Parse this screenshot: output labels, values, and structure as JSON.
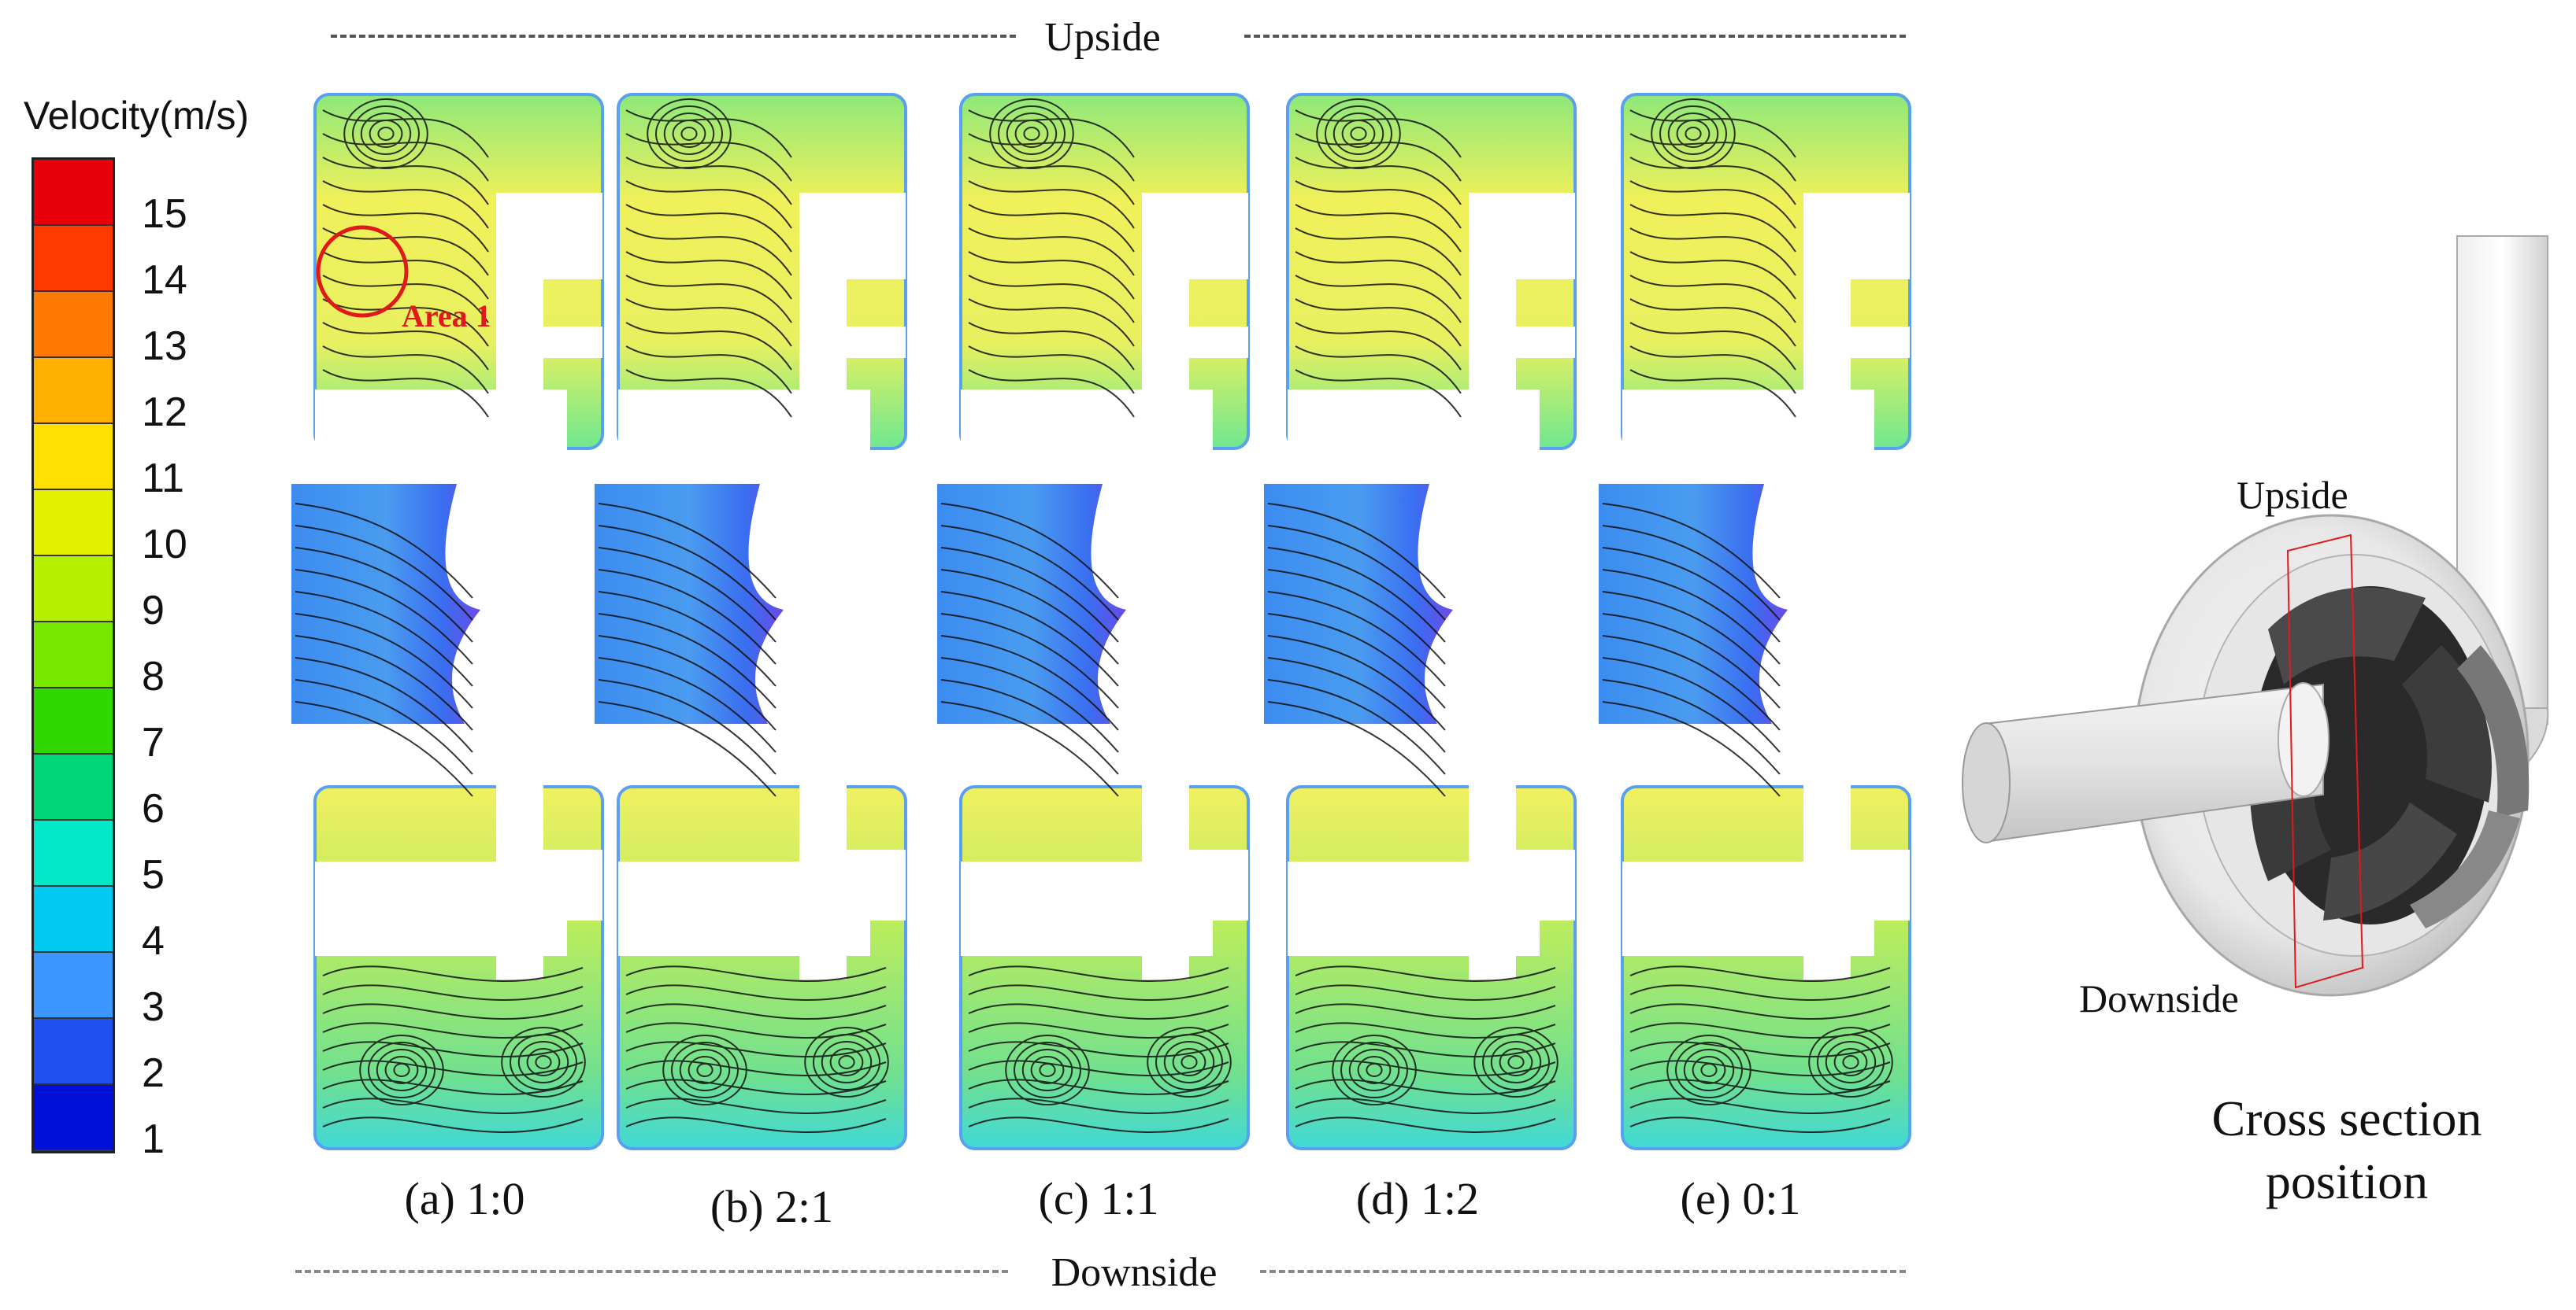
{
  "figure": {
    "top_label": "Upside",
    "bottom_label": "Downside"
  },
  "colorbar": {
    "title": "Velocity(m/s)",
    "ticks": [
      "15",
      "14",
      "13",
      "12",
      "11",
      "10",
      "9",
      "8",
      "7",
      "6",
      "5",
      "4",
      "3",
      "2",
      "1"
    ],
    "colors": [
      "#e8000a",
      "#ff3a00",
      "#ff7a00",
      "#ffb000",
      "#ffe000",
      "#e4f000",
      "#b4f000",
      "#78e800",
      "#2ed800",
      "#00d878",
      "#00e8c8",
      "#00c8f0",
      "#3c96ff",
      "#2050f0",
      "#0010d8"
    ]
  },
  "panels": [
    {
      "caption": "(a) 1:0"
    },
    {
      "caption": "(b) 2:1"
    },
    {
      "caption": "(c) 1:1"
    },
    {
      "caption": "(d) 1:2"
    },
    {
      "caption": "(e) 0:1"
    }
  ],
  "annotation": {
    "text": "Area 1",
    "color": "#e0191b"
  },
  "pump_view": {
    "upside_label": "Upside",
    "downside_label": "Downside",
    "caption_line1": "Cross section",
    "caption_line2": "position"
  }
}
